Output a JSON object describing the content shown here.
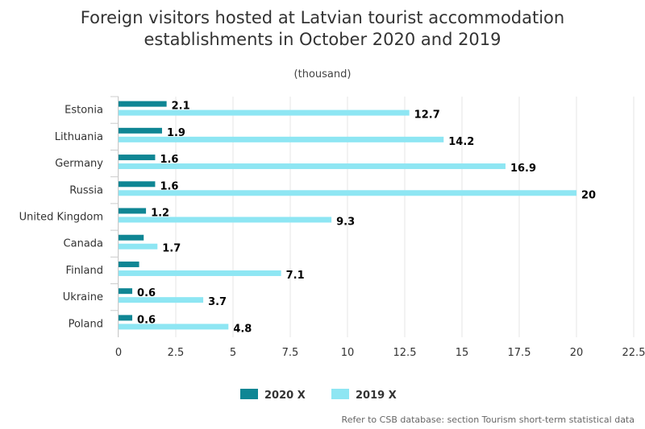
{
  "chart_data": {
    "type": "bar",
    "orientation": "horizontal",
    "title_lines": [
      "Foreign visitors hosted at Latvian tourist accommodation",
      "establishments in October 2020 and 2019"
    ],
    "subtitle": "(thousand)",
    "categories": [
      "Estonia",
      "Lithuania",
      "Germany",
      "Russia",
      "United Kingdom",
      "Canada",
      "Finland",
      "Ukraine",
      "Poland"
    ],
    "series": [
      {
        "name": "2020 X",
        "color": "#0f8694",
        "values": [
          2.1,
          1.9,
          1.6,
          1.6,
          1.2,
          1.1,
          0.9,
          0.6,
          0.6
        ],
        "labels": [
          "2.1",
          "1.9",
          "1.6",
          "1.6",
          "1.2",
          "",
          "",
          "0.6",
          "0.6"
        ]
      },
      {
        "name": "2019 X",
        "color": "#8ee6f3",
        "values": [
          12.7,
          14.2,
          16.9,
          20,
          9.3,
          1.7,
          7.1,
          3.7,
          4.8
        ],
        "labels": [
          "12.7",
          "14.2",
          "16.9",
          "20",
          "9.3",
          "1.7",
          "7.1",
          "3.7",
          "4.8"
        ]
      }
    ],
    "xlim": [
      0,
      22.5
    ],
    "x_ticks": [
      "0",
      "2.5",
      "5",
      "7.5",
      "10",
      "12.5",
      "15",
      "17.5",
      "20",
      "22.5"
    ],
    "grid": true,
    "legend": "bottom-center",
    "credit": "Refer to CSB database: section Tourism short-term statistical data"
  }
}
